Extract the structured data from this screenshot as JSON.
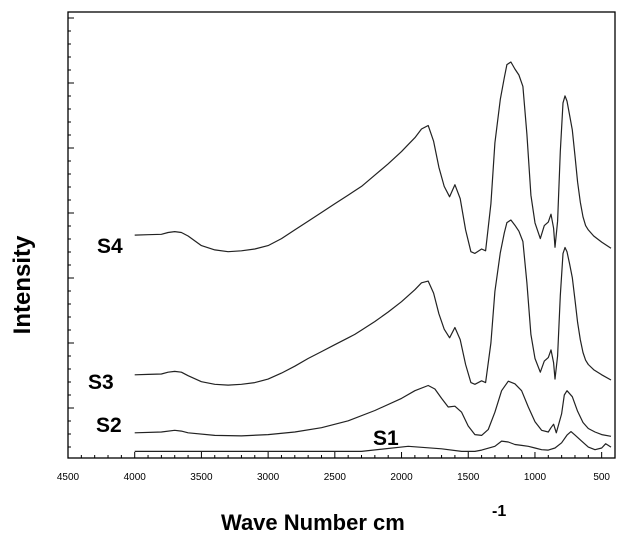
{
  "chart_data": {
    "type": "line",
    "title": "",
    "xlabel": "Wave Number cm",
    "xlabel_superscript": "-1",
    "ylabel": "Intensity",
    "xlim": [
      4500,
      400
    ],
    "x_reversed": true,
    "y_ticks_labeled": false,
    "grid": false,
    "x_ticks": [
      "4500",
      "4000",
      "3500",
      "3000",
      "2500",
      "2000",
      "1500",
      "1000",
      "500"
    ],
    "line_color": "#222222",
    "series": [
      {
        "name": "S4",
        "x": [
          4000,
          3900,
          3800,
          3750,
          3700,
          3650,
          3600,
          3500,
          3400,
          3300,
          3200,
          3100,
          3000,
          2900,
          2800,
          2700,
          2600,
          2500,
          2400,
          2350,
          2300,
          2200,
          2100,
          2000,
          1950,
          1900,
          1850,
          1800,
          1760,
          1720,
          1680,
          1640,
          1600,
          1560,
          1520,
          1480,
          1450,
          1400,
          1370,
          1330,
          1300,
          1260,
          1230,
          1210,
          1180,
          1150,
          1120,
          1090,
          1060,
          1030,
          1000,
          960,
          930,
          900,
          880,
          860,
          850,
          830,
          810,
          790,
          775,
          760,
          740,
          720,
          700,
          680,
          660,
          640,
          620,
          600,
          560,
          500,
          430
        ],
        "y": [
          2.4,
          2.45,
          2.5,
          2.7,
          2.8,
          2.7,
          2.3,
          1.2,
          0.7,
          0.5,
          0.6,
          0.8,
          1.2,
          2.0,
          3.0,
          4.0,
          5.0,
          6.0,
          7.0,
          7.5,
          8.0,
          9.3,
          10.6,
          12.0,
          12.8,
          13.6,
          14.6,
          15.0,
          13.2,
          10.2,
          8.0,
          6.8,
          8.2,
          6.6,
          3.0,
          0.5,
          0.3,
          0.8,
          0.6,
          6.0,
          13.0,
          18.0,
          20.5,
          22.0,
          22.3,
          21.5,
          20.8,
          19.5,
          14.0,
          7.0,
          3.8,
          2.0,
          3.5,
          3.9,
          4.8,
          3.2,
          1.0,
          4.0,
          12.0,
          17.6,
          18.4,
          17.8,
          16.2,
          14.5,
          11.5,
          8.5,
          6.2,
          4.5,
          3.5,
          3.0,
          2.3,
          1.6,
          0.9
        ]
      },
      {
        "name": "S3",
        "x": [
          4000,
          3900,
          3800,
          3750,
          3700,
          3650,
          3600,
          3500,
          3400,
          3300,
          3200,
          3100,
          3000,
          2900,
          2800,
          2700,
          2600,
          2500,
          2400,
          2350,
          2300,
          2200,
          2100,
          2000,
          1950,
          1900,
          1850,
          1800,
          1760,
          1720,
          1680,
          1640,
          1600,
          1560,
          1520,
          1480,
          1450,
          1400,
          1370,
          1330,
          1300,
          1260,
          1230,
          1210,
          1180,
          1150,
          1120,
          1090,
          1060,
          1030,
          1000,
          960,
          930,
          900,
          880,
          860,
          850,
          830,
          810,
          790,
          775,
          760,
          740,
          720,
          700,
          680,
          660,
          640,
          620,
          600,
          560,
          500,
          430
        ],
        "y": [
          1.3,
          1.35,
          1.4,
          1.6,
          1.7,
          1.6,
          1.2,
          0.5,
          0.2,
          0.1,
          0.2,
          0.4,
          0.8,
          1.5,
          2.3,
          3.2,
          4.0,
          4.8,
          5.6,
          6.0,
          6.5,
          7.5,
          8.6,
          9.8,
          10.5,
          11.2,
          12.0,
          12.2,
          10.8,
          8.4,
          6.6,
          5.6,
          6.8,
          5.4,
          2.5,
          0.4,
          0.2,
          0.6,
          0.4,
          5.0,
          11.0,
          15.5,
          17.8,
          19.0,
          19.3,
          18.7,
          18.0,
          16.8,
          12.0,
          6.0,
          3.2,
          1.6,
          2.9,
          3.3,
          4.2,
          2.7,
          0.8,
          3.5,
          10.5,
          15.4,
          16.1,
          15.6,
          14.2,
          12.6,
          10.0,
          7.4,
          5.4,
          3.9,
          3.0,
          2.5,
          1.9,
          1.3,
          0.7
        ]
      },
      {
        "name": "S2",
        "x": [
          4000,
          3800,
          3700,
          3650,
          3600,
          3400,
          3200,
          3000,
          2800,
          2600,
          2400,
          2200,
          2000,
          1900,
          1800,
          1750,
          1700,
          1650,
          1600,
          1550,
          1500,
          1450,
          1400,
          1350,
          1300,
          1250,
          1200,
          1150,
          1100,
          1050,
          1000,
          950,
          900,
          880,
          860,
          840,
          800,
          780,
          760,
          720,
          680,
          640,
          600,
          550,
          500,
          430
        ],
        "y": [
          0.6,
          0.7,
          0.9,
          0.8,
          0.6,
          0.3,
          0.25,
          0.4,
          0.7,
          1.2,
          2.0,
          3.2,
          4.6,
          5.5,
          6.1,
          5.7,
          4.6,
          3.6,
          3.7,
          3.0,
          1.4,
          0.4,
          0.3,
          1.0,
          3.0,
          5.5,
          6.6,
          6.3,
          5.5,
          3.6,
          1.9,
          0.9,
          0.7,
          1.2,
          1.6,
          0.6,
          2.8,
          5.0,
          5.5,
          4.8,
          3.1,
          1.8,
          1.1,
          0.7,
          0.4,
          0.2
        ]
      },
      {
        "name": "S1",
        "x": [
          4000,
          3500,
          3000,
          2500,
          2300,
          1950,
          1700,
          1550,
          1450,
          1400,
          1300,
          1250,
          1200,
          1150,
          1100,
          1050,
          1000,
          950,
          900,
          850,
          800,
          760,
          730,
          700,
          650,
          600,
          550,
          500,
          470,
          450,
          430
        ],
        "y": [
          0.3,
          0.3,
          0.3,
          0.3,
          0.3,
          0.9,
          0.6,
          0.3,
          0.3,
          0.45,
          0.9,
          1.5,
          1.4,
          1.1,
          1.0,
          0.9,
          0.7,
          0.5,
          0.45,
          0.7,
          1.3,
          2.2,
          2.6,
          2.2,
          1.5,
          0.8,
          0.5,
          0.7,
          1.2,
          1.0,
          0.8
        ]
      }
    ]
  }
}
